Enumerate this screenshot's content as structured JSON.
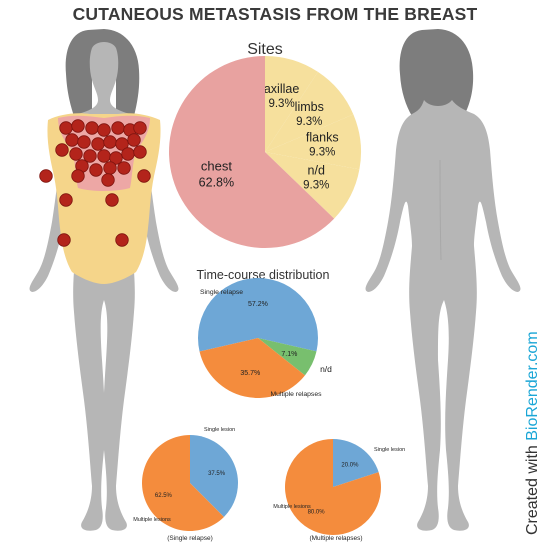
{
  "title": "CUTANEOUS METASTASIS FROM THE BREAST",
  "credit": {
    "prefix": "Created with ",
    "brand": "BioRender.com"
  },
  "colors": {
    "body": "#b6b6b6",
    "skin": "#f5d58a",
    "chest_zone": "#eda7a5",
    "lesion": "#b3241b",
    "pie_chest": "#e8a2a0",
    "pie_other": "#f6e09d",
    "blue": "#6ea7d6",
    "orange": "#f48c3d",
    "green": "#78bf6e"
  },
  "chart_data": [
    {
      "type": "pie",
      "title": "Sites",
      "categories": [
        "chest",
        "axillae",
        "limbs",
        "flanks",
        "n/d"
      ],
      "values": [
        62.8,
        9.3,
        9.3,
        9.3,
        9.3
      ],
      "labels": [
        "62.8%",
        "9.3%",
        "9.3%",
        "9.3%",
        "9.3%"
      ]
    },
    {
      "type": "pie",
      "title": "Time-course distribution",
      "categories": [
        "Single relapse",
        "n/d",
        "Multiple relapses"
      ],
      "values": [
        57.2,
        7.1,
        35.7
      ],
      "labels": [
        "57.2%",
        "7.1%",
        "35.7%"
      ]
    },
    {
      "type": "pie",
      "title": "(Single relapse)",
      "categories": [
        "Single lesion",
        "Multiple lesions"
      ],
      "values": [
        37.5,
        62.5
      ],
      "labels": [
        "37.5%",
        "62.5%"
      ]
    },
    {
      "type": "pie",
      "title": "(Multiple relapses)",
      "categories": [
        "Single lesion",
        "Multiple lesions"
      ],
      "values": [
        20.0,
        80.0
      ],
      "labels": [
        "20.0%",
        "80.0%"
      ]
    }
  ]
}
